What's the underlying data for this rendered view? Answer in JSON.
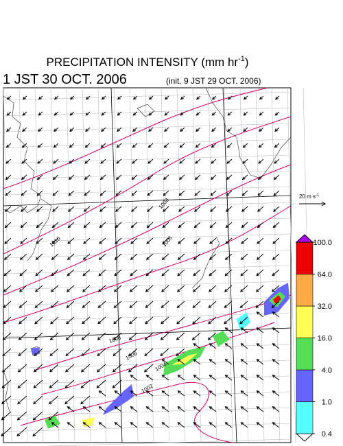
{
  "header": {
    "title": {
      "text": "PRECIPITATION INTENSITY (mm hr",
      "sup": "-1",
      "close": ")"
    },
    "valid_time": "1 JST 30 OCT. 2006",
    "init_time": "(init. 9 JST 29 OCT. 2006)"
  },
  "wind_scale": {
    "text": "20 m s",
    "sup": "-1"
  },
  "colorbar": {
    "levels": [
      {
        "value": 0.4,
        "label": "0.4"
      },
      {
        "value": 1,
        "label": "1.0"
      },
      {
        "value": 4,
        "label": "4.0"
      },
      {
        "value": 16,
        "label": "16.0"
      },
      {
        "value": 32,
        "label": "32.0"
      },
      {
        "value": 64,
        "label": "64.0"
      },
      {
        "value": 100,
        "label": "100.0"
      }
    ],
    "colors": [
      "#ffffff",
      "#55ffff",
      "#6666ff",
      "#55dd55",
      "#ffff55",
      "#ffaa44",
      "#ee0000",
      "#aa00ee"
    ]
  },
  "isobar_labels": [
    "1010",
    "1008",
    "1006",
    "1008",
    "1006",
    "1004",
    "1002"
  ]
}
